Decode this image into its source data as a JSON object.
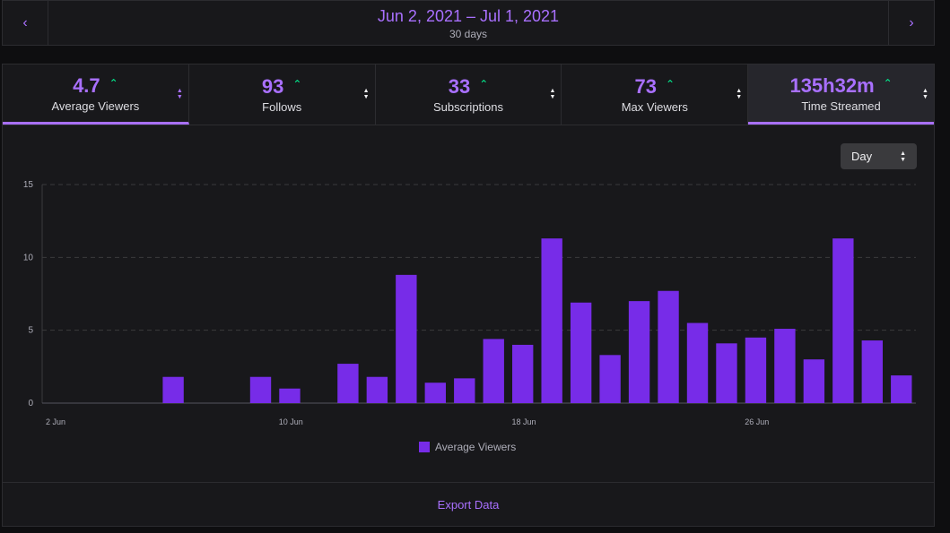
{
  "date_range": {
    "label": "Jun 2, 2021 – Jul 1, 2021",
    "days": "30 days",
    "prev_icon": "chevron-left-icon",
    "next_icon": "chevron-right-icon"
  },
  "stats": [
    {
      "value": "4.7",
      "label": "Average Viewers",
      "trend": "⌃"
    },
    {
      "value": "93",
      "label": "Follows",
      "trend": "⌃"
    },
    {
      "value": "33",
      "label": "Subscriptions",
      "trend": "⌃"
    },
    {
      "value": "73",
      "label": "Max Viewers",
      "trend": "⌃"
    },
    {
      "value": "135h32m",
      "label": "Time Streamed",
      "trend": "⌃"
    }
  ],
  "period_select": {
    "value": "Day"
  },
  "export_label": "Export Data",
  "colors": {
    "accent": "#a970ff",
    "bar": "#772ce8",
    "trend_up": "#00f593"
  },
  "chart_data": {
    "type": "bar",
    "title": "",
    "xlabel": "",
    "ylabel": "",
    "ylim": [
      0,
      15
    ],
    "yticks": [
      0,
      5,
      10,
      15
    ],
    "categories": [
      "2 Jun",
      "3 Jun",
      "4 Jun",
      "5 Jun",
      "6 Jun",
      "7 Jun",
      "8 Jun",
      "9 Jun",
      "10 Jun",
      "11 Jun",
      "12 Jun",
      "13 Jun",
      "14 Jun",
      "15 Jun",
      "16 Jun",
      "17 Jun",
      "18 Jun",
      "19 Jun",
      "20 Jun",
      "21 Jun",
      "22 Jun",
      "23 Jun",
      "24 Jun",
      "25 Jun",
      "26 Jun",
      "27 Jun",
      "28 Jun",
      "29 Jun",
      "30 Jun",
      "1 Jul"
    ],
    "xtick_labels": [
      "2 Jun",
      "",
      "",
      "",
      "",
      "",
      "",
      "",
      "10 Jun",
      "",
      "",
      "",
      "",
      "",
      "",
      "",
      "18 Jun",
      "",
      "",
      "",
      "",
      "",
      "",
      "",
      "26 Jun",
      "",
      "",
      "",
      "",
      ""
    ],
    "series": [
      {
        "name": "Average Viewers",
        "values": [
          0,
          0,
          0,
          0,
          1.8,
          0,
          0,
          1.8,
          1.0,
          0,
          2.7,
          1.8,
          8.8,
          1.4,
          1.7,
          4.4,
          4.0,
          11.3,
          6.9,
          3.3,
          7.0,
          7.7,
          5.5,
          4.1,
          4.5,
          5.1,
          3.0,
          11.3,
          4.3,
          1.9
        ]
      }
    ],
    "legend": "bottom-center",
    "grid": true
  }
}
